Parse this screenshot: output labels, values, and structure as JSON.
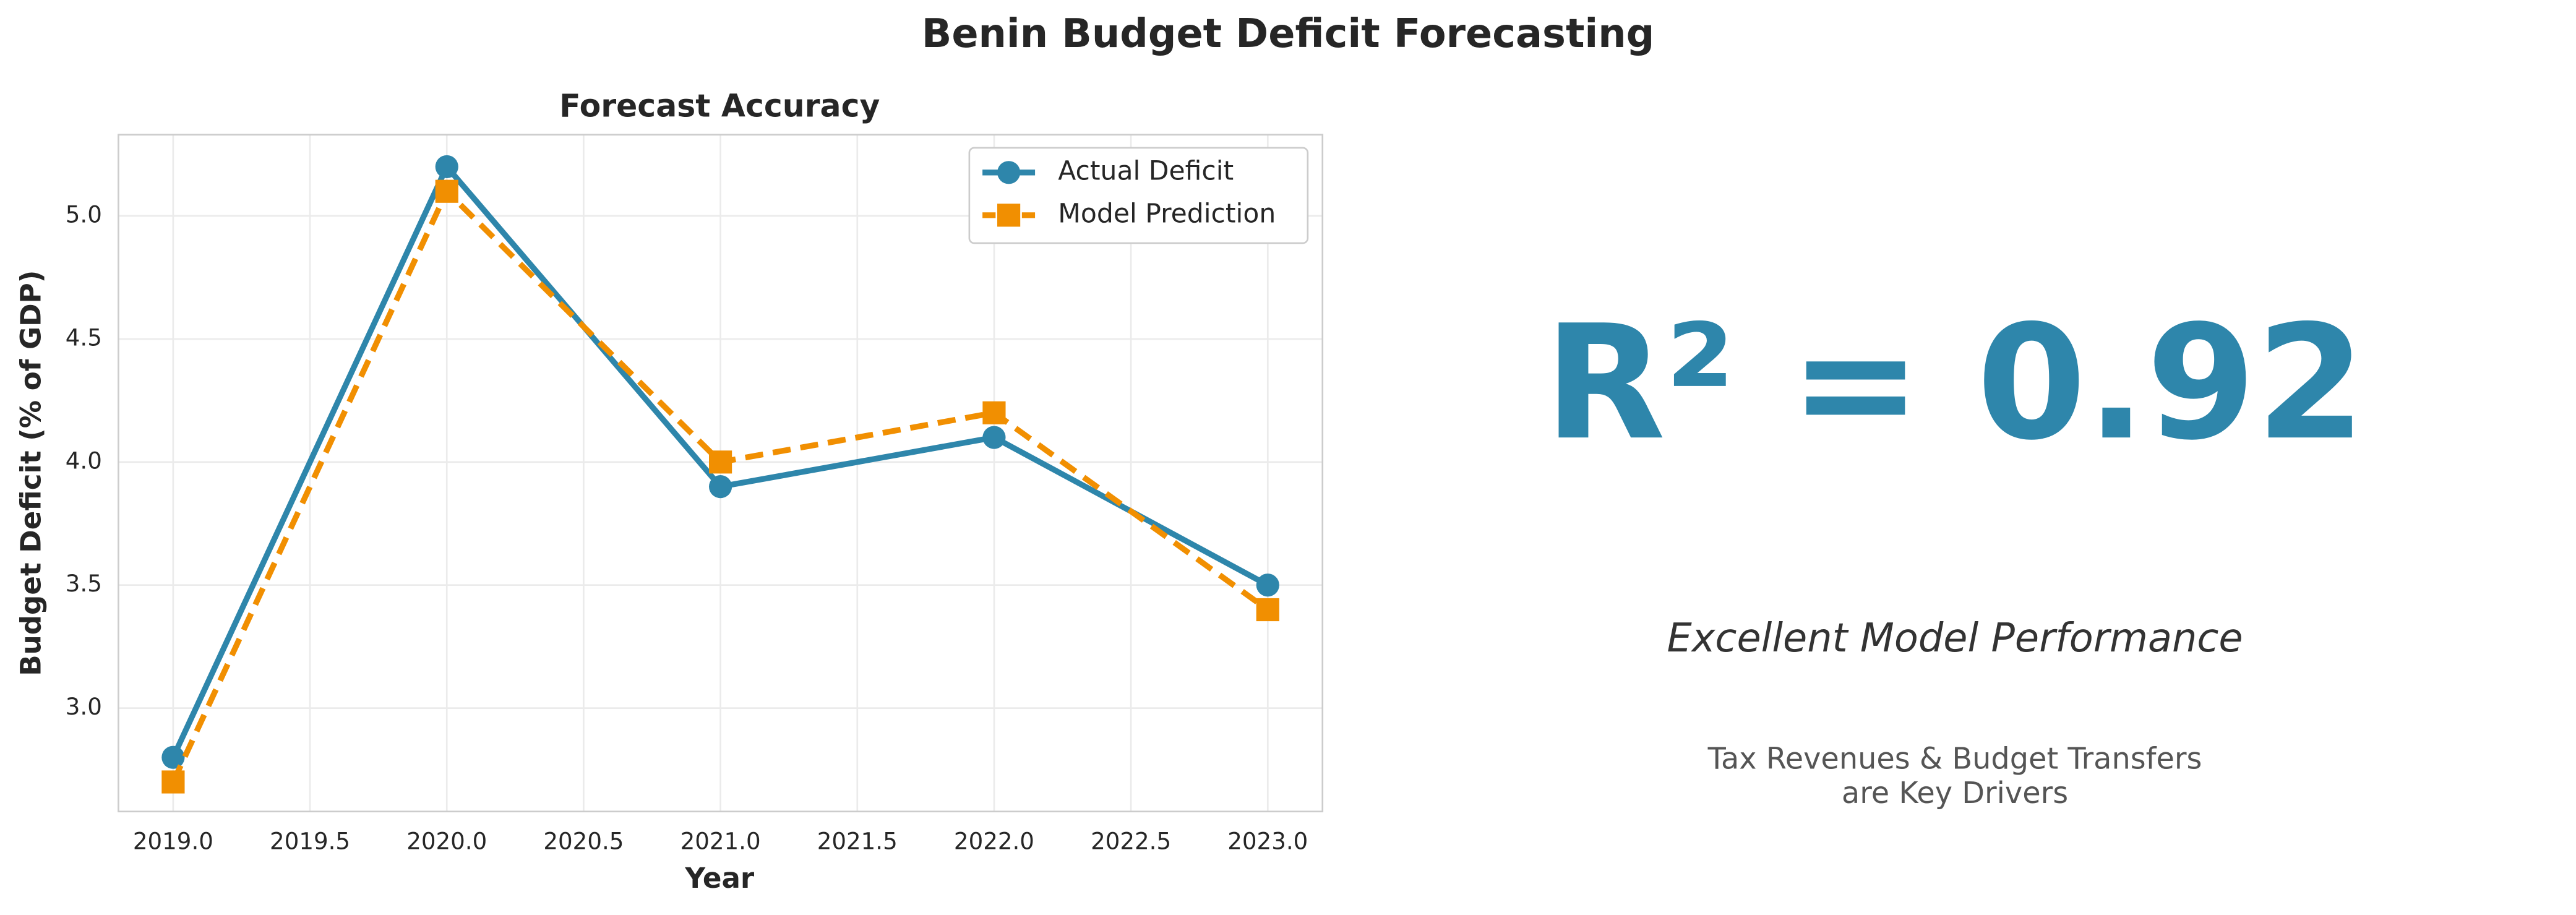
{
  "title": "Benin Budget Deficit Forecasting",
  "chart_data": {
    "type": "line",
    "title": "Forecast Accuracy",
    "x_label": "Year",
    "y_label": "Budget Deficit (% of GDP)",
    "x": [
      2019,
      2020,
      2021,
      2022,
      2023
    ],
    "series": [
      {
        "name": "Actual Deficit",
        "color": "#2e86ab",
        "marker": "circle",
        "dashed": false,
        "values": [
          2.8,
          5.2,
          3.9,
          4.1,
          3.5
        ]
      },
      {
        "name": "Model Prediction",
        "color": "#f18f01",
        "marker": "square",
        "dashed": true,
        "values": [
          2.7,
          5.1,
          4.0,
          4.2,
          3.4
        ]
      }
    ],
    "xlim": [
      2018.8,
      2023.2
    ],
    "xticks": [
      {
        "value": 2019,
        "label": "2019.0"
      },
      2019.5,
      {
        "value": 2020,
        "label": "2020.0"
      },
      2020.5,
      {
        "value": 2021,
        "label": "2021.0"
      },
      2021.5,
      {
        "value": 2022,
        "label": "2022.0"
      },
      2022.5,
      {
        "value": 2023,
        "label": "2023.0"
      }
    ],
    "ylim": [
      2.58,
      5.33
    ],
    "yticks": [
      {
        "value": 3,
        "label": "3.0"
      },
      3.5,
      {
        "value": 4,
        "label": "4.0"
      },
      4.5,
      {
        "value": 5,
        "label": "5.0"
      }
    ],
    "grid": true,
    "legend": "upper right"
  },
  "summary_panel": {
    "metric": "R² = 0.92",
    "headline": "Excellent Model Performance",
    "note_lines": [
      "Tax Revenues & Budget Transfers",
      "are Key Drivers"
    ]
  }
}
